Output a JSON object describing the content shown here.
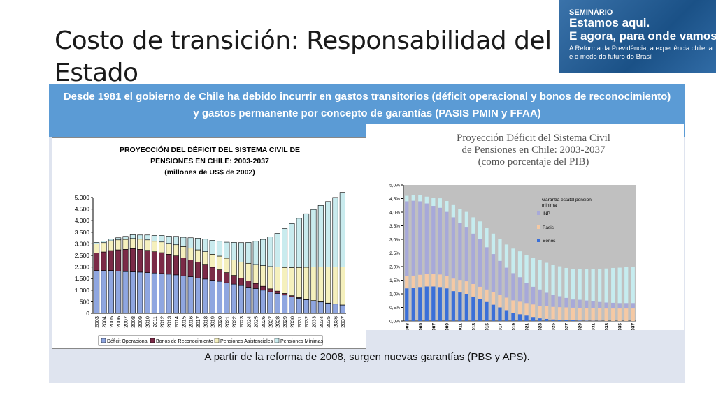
{
  "slide": {
    "title": "Costo de transición: Responsabilidad del Estado",
    "intro": "Desde 1981  el gobierno de Chile ha debido incurrir en gastos transitorios (déficit operacional y bonos de reconocimiento) y gastos permanente por concepto de  garantías (PASIS PMIN y FFAA)",
    "footer": "A partir de la reforma de 2008, surgen nuevas garantías (PBS y APS)."
  },
  "banner": {
    "line1": "SEMINÁRIO",
    "line2a": "Estamos aqui.",
    "line2b": "E agora, para onde vamos?",
    "line3": "A Reforma da Previdência, a experiência chilena e o medo do futuro do Brasil",
    "color": "#1f5f9e"
  },
  "chart_data": [
    {
      "type": "bar",
      "stacked": true,
      "title_lines": [
        "PROYECCIÓN DEL DÉFICIT DEL SISTEMA CIVIL DE",
        "PENSIONES EN CHILE: 2003-2037",
        "(millones de US$ de 2002)"
      ],
      "categories": [
        "2003",
        "2004",
        "2005",
        "2006",
        "2007",
        "2008",
        "2009",
        "2010",
        "2011",
        "2012",
        "2013",
        "2014",
        "2015",
        "2016",
        "2017",
        "2018",
        "2019",
        "2020",
        "2021",
        "2022",
        "2023",
        "2024",
        "2025",
        "2026",
        "2027",
        "2028",
        "2029",
        "2030",
        "2031",
        "2032",
        "2033",
        "2034",
        "2035",
        "2036",
        "2037"
      ],
      "series": [
        {
          "name": "Déficit Operacional",
          "color": "#8fa6e0",
          "values": [
            1850,
            1850,
            1850,
            1820,
            1800,
            1790,
            1780,
            1760,
            1740,
            1720,
            1690,
            1660,
            1620,
            1580,
            1530,
            1480,
            1430,
            1380,
            1320,
            1260,
            1200,
            1130,
            1070,
            1000,
            930,
            860,
            790,
            720,
            650,
            590,
            540,
            490,
            440,
            400,
            360
          ]
        },
        {
          "name": "Bonos de Reconocimiento",
          "color": "#7b2a47",
          "values": [
            750,
            800,
            860,
            920,
            960,
            1000,
            980,
            960,
            920,
            900,
            860,
            820,
            770,
            730,
            690,
            640,
            560,
            500,
            440,
            380,
            320,
            270,
            220,
            170,
            130,
            100,
            70,
            45,
            30,
            20,
            12,
            8,
            5,
            3,
            2
          ]
        },
        {
          "name": "Pensiones Asistenciales",
          "color": "#f5f0bd",
          "values": [
            400,
            400,
            420,
            430,
            430,
            440,
            440,
            450,
            450,
            460,
            470,
            480,
            490,
            500,
            520,
            540,
            560,
            590,
            620,
            660,
            700,
            760,
            820,
            890,
            960,
            1040,
            1120,
            1210,
            1300,
            1380,
            1450,
            1510,
            1560,
            1600,
            1640
          ]
        },
        {
          "name": "Pensiones Mínimas",
          "color": "#c9ebee",
          "values": [
            60,
            70,
            70,
            90,
            130,
            160,
            180,
            210,
            250,
            280,
            310,
            360,
            400,
            450,
            500,
            540,
            600,
            640,
            690,
            760,
            830,
            900,
            1000,
            1130,
            1280,
            1450,
            1680,
            1900,
            2120,
            2310,
            2480,
            2650,
            2820,
            3000,
            3220
          ]
        }
      ],
      "ylim": [
        0,
        5000
      ],
      "yticks": [
        0,
        500,
        1000,
        1500,
        2000,
        2500,
        3000,
        3500,
        4000,
        4500,
        5000
      ],
      "ytick_labels": [
        "0",
        "500",
        "1.000",
        "1.500",
        "2.000",
        "2.500",
        "3.000",
        "3.500",
        "4.000",
        "4.500",
        "5.000"
      ],
      "legend_position": "bottom",
      "grid": false
    },
    {
      "type": "bar",
      "stacked": true,
      "title_lines": [
        "Proyección Déficit del Sistema Civil",
        "de Pensiones en Chile: 2003-2037",
        "(como porcentaje del PIB)"
      ],
      "categories": [
        "2003",
        "2004",
        "2005",
        "2006",
        "2007",
        "2008",
        "2009",
        "2010",
        "2011",
        "2012",
        "2013",
        "2014",
        "2015",
        "2016",
        "2017",
        "2018",
        "2019",
        "2020",
        "2021",
        "2022",
        "2023",
        "2024",
        "2025",
        "2026",
        "2027",
        "2028",
        "2029",
        "2030",
        "2031",
        "2032",
        "2033",
        "2034",
        "2035",
        "2036",
        "2037"
      ],
      "x_tick_labels_shown": [
        "2003",
        "2005",
        "2007",
        "2009",
        "2011",
        "2013",
        "2015",
        "2017",
        "2019",
        "2021",
        "2023",
        "2025",
        "2027",
        "2029",
        "2031",
        "2033",
        "2035",
        "2037"
      ],
      "series": [
        {
          "name": "Bonos",
          "color": "#3a6fd8",
          "values": [
            1.2,
            1.22,
            1.25,
            1.27,
            1.27,
            1.25,
            1.2,
            1.1,
            1.05,
            1.0,
            0.9,
            0.8,
            0.7,
            0.6,
            0.5,
            0.4,
            0.3,
            0.25,
            0.2,
            0.15,
            0.1,
            0.08,
            0.06,
            0.05,
            0.04,
            0.03,
            0.02,
            0.015,
            0.01,
            0.01,
            0.0,
            0.0,
            0.0,
            0.0,
            0.0
          ]
        },
        {
          "name": "Pasis",
          "color": "#f5c9a4",
          "values": [
            0.45,
            0.45,
            0.45,
            0.45,
            0.46,
            0.46,
            0.46,
            0.46,
            0.46,
            0.46,
            0.46,
            0.46,
            0.46,
            0.46,
            0.46,
            0.46,
            0.46,
            0.46,
            0.46,
            0.46,
            0.46,
            0.46,
            0.46,
            0.46,
            0.46,
            0.46,
            0.46,
            0.46,
            0.46,
            0.46,
            0.46,
            0.46,
            0.46,
            0.46,
            0.46
          ]
        },
        {
          "name": "INP",
          "color": "#a7a9d9",
          "values": [
            2.75,
            2.75,
            2.7,
            2.6,
            2.5,
            2.45,
            2.35,
            2.25,
            2.1,
            2.0,
            1.85,
            1.75,
            1.55,
            1.4,
            1.25,
            1.1,
            1.0,
            0.9,
            0.75,
            0.65,
            0.6,
            0.5,
            0.45,
            0.4,
            0.35,
            0.3,
            0.3,
            0.28,
            0.25,
            0.23,
            0.22,
            0.21,
            0.2,
            0.2,
            0.2
          ]
        },
        {
          "name": "Garantía estatal pension minima",
          "color": "#c6ecef",
          "values": [
            0.2,
            0.2,
            0.22,
            0.25,
            0.3,
            0.35,
            0.4,
            0.45,
            0.5,
            0.55,
            0.6,
            0.65,
            0.7,
            0.75,
            0.8,
            0.85,
            0.9,
            0.95,
            1.0,
            1.05,
            1.08,
            1.1,
            1.1,
            1.1,
            1.1,
            1.12,
            1.14,
            1.16,
            1.2,
            1.22,
            1.25,
            1.28,
            1.3,
            1.32,
            1.34
          ]
        }
      ],
      "ylim": [
        0,
        5
      ],
      "yticks": [
        0,
        0.5,
        1,
        1.5,
        2,
        2.5,
        3,
        3.5,
        4,
        4.5,
        5
      ],
      "ytick_labels": [
        "0,0%",
        "0,5%",
        "1,0%",
        "1,5%",
        "2,0%",
        "2,5%",
        "3,0%",
        "3,5%",
        "4,0%",
        "4,5%",
        "5,0%"
      ],
      "legend_order": [
        "Garantía estatal pension minima",
        "INP",
        "Pasis",
        "Bonos"
      ],
      "legend_position": "top-right",
      "plot_background": "#c0c0c0",
      "grid": false
    }
  ]
}
